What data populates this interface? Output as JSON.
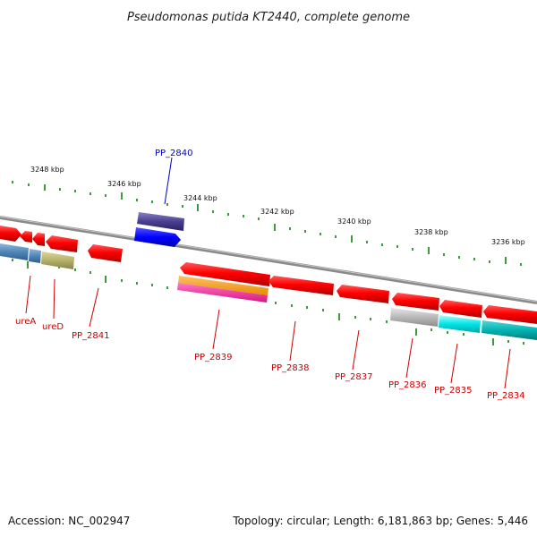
{
  "title": "Pseudomonas putida KT2440, complete genome",
  "footer": {
    "accession": "Accession: NC_002947",
    "summary": "Topology: circular; Length: 6,181,863 bp; Genes: 5,446"
  },
  "scale_labels": [
    "3248 kbp",
    "3246 kbp",
    "3244 kbp",
    "3242 kbp",
    "3240 kbp",
    "3238 kbp",
    "3236 kbp"
  ],
  "gene_labels": [
    "PP_2840",
    "ureA",
    "ureD",
    "PP_2841",
    "PP_2839",
    "PP_2838",
    "PP_2837",
    "PP_2836",
    "PP_2835",
    "PP_2834"
  ],
  "colors": {
    "backbone": "#8a8a8a",
    "cds": "#ff0000",
    "tick": "#007700",
    "label_red": "#cc0000",
    "label_blue": "#0000cc",
    "highlight_dark": "#4a3f8f",
    "highlight_blue": "#0000ff",
    "orange": "#ff9900",
    "magenta": "#ff33aa",
    "steel": "#4f86b8",
    "khaki": "#b5b06a",
    "grey": "#b8b8b8",
    "cyan": "#00e5e5",
    "teal": "#00b3b3"
  }
}
